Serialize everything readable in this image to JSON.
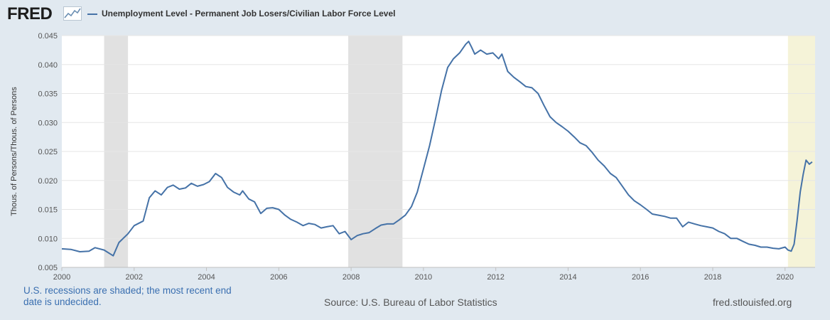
{
  "header": {
    "logo_text": "FRED",
    "logo_graph_icon": "line-chart-icon"
  },
  "legend": {
    "series_label": "Unemployment Level - Permanent Job Losers/Civilian Labor Force Level"
  },
  "footer": {
    "recession_note": "U.S. recessions are shaded; the most recent end date is undecided.",
    "source": "Source: U.S. Bureau of Labor Statistics",
    "site": "fred.stlouisfed.org"
  },
  "colors": {
    "line": "#4572a7",
    "recession": "#e1e1e1",
    "recession_open": "#f5f3d8",
    "background": "#e1e9f0",
    "plot_background": "#ffffff"
  },
  "chart_data": {
    "type": "line",
    "title": "",
    "xlabel": "",
    "ylabel": "Thous. of Persons/Thous. of Persons",
    "xlim": [
      2000.0,
      2020.83
    ],
    "ylim": [
      0.005,
      0.045
    ],
    "x_ticks": [
      2000,
      2002,
      2004,
      2006,
      2008,
      2010,
      2012,
      2014,
      2016,
      2018,
      2020
    ],
    "y_ticks": [
      "0.005",
      "0.010",
      "0.015",
      "0.020",
      "0.025",
      "0.030",
      "0.035",
      "0.040",
      "0.045"
    ],
    "grid": "horizontal",
    "recessions": [
      {
        "start": 2001.17,
        "end": 2001.83,
        "open": false
      },
      {
        "start": 2007.92,
        "end": 2009.42,
        "open": false
      },
      {
        "start": 2020.08,
        "end": 2020.83,
        "open": true
      }
    ],
    "series": [
      {
        "name": "Unemployment Level - Permanent Job Losers/Civilian Labor Force Level",
        "points": [
          [
            2000.0,
            0.0082
          ],
          [
            2000.25,
            0.0081
          ],
          [
            2000.5,
            0.0077
          ],
          [
            2000.75,
            0.0078
          ],
          [
            2000.92,
            0.0084
          ],
          [
            2001.17,
            0.008
          ],
          [
            2001.42,
            0.007
          ],
          [
            2001.58,
            0.0093
          ],
          [
            2001.83,
            0.0108
          ],
          [
            2002.0,
            0.0122
          ],
          [
            2002.25,
            0.013
          ],
          [
            2002.42,
            0.017
          ],
          [
            2002.58,
            0.0182
          ],
          [
            2002.75,
            0.0175
          ],
          [
            2002.92,
            0.0188
          ],
          [
            2003.08,
            0.0192
          ],
          [
            2003.25,
            0.0185
          ],
          [
            2003.42,
            0.0187
          ],
          [
            2003.58,
            0.0195
          ],
          [
            2003.75,
            0.019
          ],
          [
            2003.92,
            0.0193
          ],
          [
            2004.08,
            0.0198
          ],
          [
            2004.25,
            0.0212
          ],
          [
            2004.42,
            0.0205
          ],
          [
            2004.58,
            0.0188
          ],
          [
            2004.75,
            0.018
          ],
          [
            2004.92,
            0.0175
          ],
          [
            2005.0,
            0.0182
          ],
          [
            2005.17,
            0.0168
          ],
          [
            2005.33,
            0.0163
          ],
          [
            2005.5,
            0.0143
          ],
          [
            2005.67,
            0.0152
          ],
          [
            2005.83,
            0.0153
          ],
          [
            2006.0,
            0.015
          ],
          [
            2006.17,
            0.014
          ],
          [
            2006.33,
            0.0133
          ],
          [
            2006.5,
            0.0128
          ],
          [
            2006.67,
            0.0122
          ],
          [
            2006.83,
            0.0126
          ],
          [
            2007.0,
            0.0124
          ],
          [
            2007.17,
            0.0118
          ],
          [
            2007.33,
            0.012
          ],
          [
            2007.5,
            0.0122
          ],
          [
            2007.67,
            0.0108
          ],
          [
            2007.83,
            0.0112
          ],
          [
            2008.0,
            0.0098
          ],
          [
            2008.17,
            0.0105
          ],
          [
            2008.33,
            0.0108
          ],
          [
            2008.5,
            0.011
          ],
          [
            2008.67,
            0.0117
          ],
          [
            2008.83,
            0.0123
          ],
          [
            2009.0,
            0.0125
          ],
          [
            2009.17,
            0.0125
          ],
          [
            2009.33,
            0.0132
          ],
          [
            2009.5,
            0.014
          ],
          [
            2009.67,
            0.0155
          ],
          [
            2009.83,
            0.018
          ],
          [
            2010.0,
            0.022
          ],
          [
            2010.17,
            0.026
          ],
          [
            2010.33,
            0.0305
          ],
          [
            2010.5,
            0.0355
          ],
          [
            2010.67,
            0.0395
          ],
          [
            2010.83,
            0.041
          ],
          [
            2011.0,
            0.042
          ],
          [
            2011.17,
            0.0435
          ],
          [
            2011.25,
            0.044
          ],
          [
            2011.33,
            0.043
          ],
          [
            2011.42,
            0.0418
          ],
          [
            2011.58,
            0.0425
          ],
          [
            2011.75,
            0.0418
          ],
          [
            2011.92,
            0.042
          ],
          [
            2012.08,
            0.041
          ],
          [
            2012.17,
            0.0418
          ],
          [
            2012.33,
            0.0388
          ],
          [
            2012.5,
            0.0378
          ],
          [
            2012.67,
            0.037
          ],
          [
            2012.83,
            0.0362
          ],
          [
            2013.0,
            0.036
          ],
          [
            2013.17,
            0.035
          ],
          [
            2013.33,
            0.033
          ],
          [
            2013.5,
            0.031
          ],
          [
            2013.67,
            0.03
          ],
          [
            2013.83,
            0.0293
          ],
          [
            2014.0,
            0.0285
          ],
          [
            2014.17,
            0.0275
          ],
          [
            2014.33,
            0.0265
          ],
          [
            2014.5,
            0.026
          ],
          [
            2014.67,
            0.0248
          ],
          [
            2014.83,
            0.0235
          ],
          [
            2015.0,
            0.0225
          ],
          [
            2015.17,
            0.0212
          ],
          [
            2015.33,
            0.0205
          ],
          [
            2015.5,
            0.019
          ],
          [
            2015.67,
            0.0175
          ],
          [
            2015.83,
            0.0165
          ],
          [
            2016.0,
            0.0158
          ],
          [
            2016.17,
            0.015
          ],
          [
            2016.33,
            0.0142
          ],
          [
            2016.5,
            0.014
          ],
          [
            2016.67,
            0.0138
          ],
          [
            2016.83,
            0.0135
          ],
          [
            2017.0,
            0.0135
          ],
          [
            2017.17,
            0.012
          ],
          [
            2017.33,
            0.0128
          ],
          [
            2017.5,
            0.0125
          ],
          [
            2017.67,
            0.0122
          ],
          [
            2017.83,
            0.012
          ],
          [
            2018.0,
            0.0118
          ],
          [
            2018.17,
            0.0112
          ],
          [
            2018.33,
            0.0108
          ],
          [
            2018.5,
            0.01
          ],
          [
            2018.67,
            0.01
          ],
          [
            2018.83,
            0.0095
          ],
          [
            2019.0,
            0.009
          ],
          [
            2019.17,
            0.0088
          ],
          [
            2019.33,
            0.0085
          ],
          [
            2019.5,
            0.0085
          ],
          [
            2019.67,
            0.0083
          ],
          [
            2019.83,
            0.0082
          ],
          [
            2020.0,
            0.0085
          ],
          [
            2020.08,
            0.008
          ],
          [
            2020.17,
            0.0078
          ],
          [
            2020.25,
            0.009
          ],
          [
            2020.33,
            0.013
          ],
          [
            2020.42,
            0.018
          ],
          [
            2020.5,
            0.021
          ],
          [
            2020.58,
            0.0235
          ],
          [
            2020.67,
            0.0228
          ],
          [
            2020.75,
            0.0232
          ]
        ]
      }
    ]
  }
}
